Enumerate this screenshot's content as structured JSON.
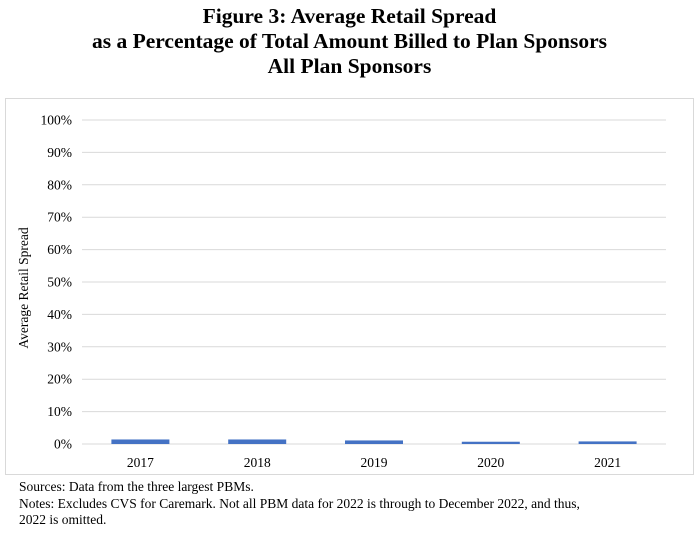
{
  "title_lines": [
    "Figure 3: Average Retail Spread",
    "as a Percentage of Total Amount Billed to Plan Sponsors",
    "All Plan Sponsors"
  ],
  "chart_data": {
    "type": "bar",
    "title": "Figure 3: Average Retail Spread as a Percentage of Total Amount Billed to Plan Sponsors — All Plan Sponsors",
    "categories": [
      "2017",
      "2018",
      "2019",
      "2020",
      "2021"
    ],
    "series": [
      {
        "name": "Average Retail Spread",
        "values": [
          1.4,
          1.4,
          1.1,
          0.7,
          0.8
        ],
        "color": "#4472c4"
      }
    ],
    "xlabel": "",
    "ylabel": "Average Retail Spread",
    "ylim": [
      0,
      100
    ],
    "yticks": [
      "0%",
      "10%",
      "20%",
      "30%",
      "40%",
      "50%",
      "60%",
      "70%",
      "80%",
      "90%",
      "100%"
    ],
    "grid": true,
    "legend": "none"
  },
  "notes": {
    "sources": "Sources: Data from the three largest PBMs.",
    "notes_line1": "Notes: Excludes CVS for Caremark. Not all PBM data for 2022 is through to December 2022, and thus,",
    "notes_line2": "2022 is omitted."
  },
  "colors": {
    "bar": "#4472c4",
    "grid": "#d9d9d9",
    "frame": "#d9d9d9"
  }
}
